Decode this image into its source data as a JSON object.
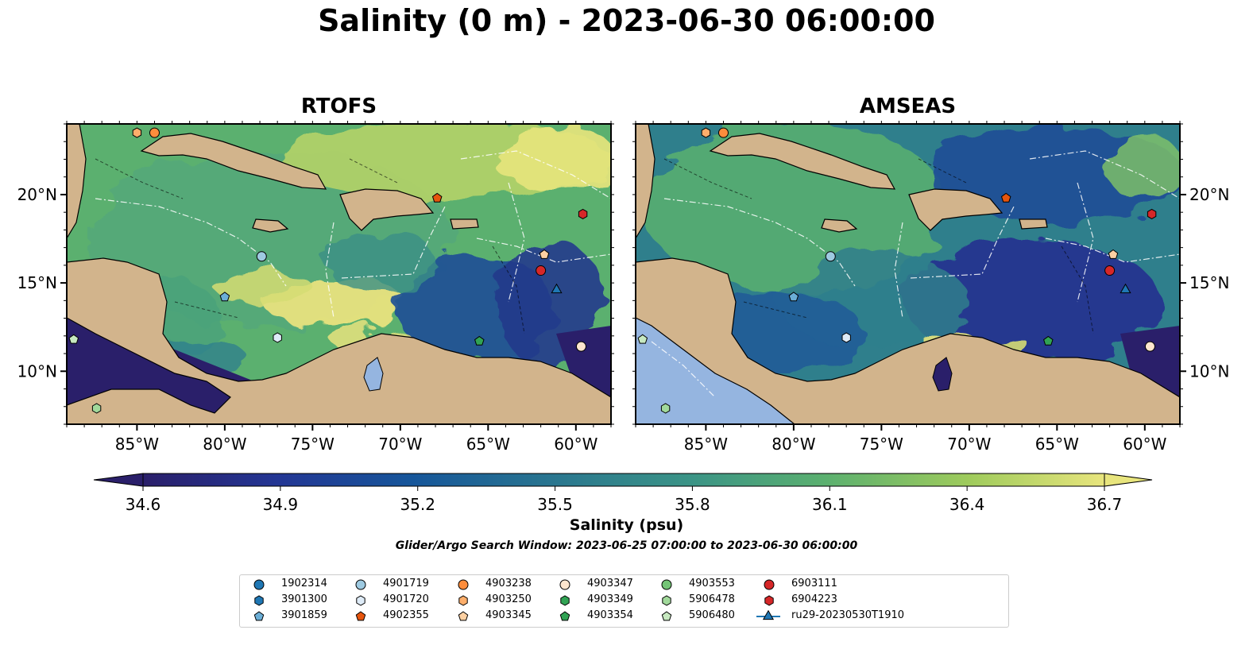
{
  "title": "Salinity (0 m) - 2023-06-30 06:00:00",
  "panels": [
    {
      "title": "RTOFS",
      "model": "rtofs"
    },
    {
      "title": "AMSEAS",
      "model": "amseas"
    }
  ],
  "axes": {
    "lon_range": [
      -89,
      -58
    ],
    "lat_range": [
      7,
      24
    ],
    "lon_ticks": [
      {
        "v": -85,
        "label": "85°W"
      },
      {
        "v": -80,
        "label": "80°W"
      },
      {
        "v": -75,
        "label": "75°W"
      },
      {
        "v": -70,
        "label": "70°W"
      },
      {
        "v": -65,
        "label": "65°W"
      },
      {
        "v": -60,
        "label": "60°W"
      }
    ],
    "lat_ticks": [
      {
        "v": 20,
        "label": "20°N"
      },
      {
        "v": 15,
        "label": "15°N"
      },
      {
        "v": 10,
        "label": "10°N"
      }
    ]
  },
  "colorbar": {
    "label": "Salinity (psu)",
    "range": [
      34.6,
      36.7
    ],
    "ticks": [
      "34.6",
      "34.9",
      "35.2",
      "35.5",
      "35.8",
      "36.1",
      "36.4",
      "36.7"
    ],
    "colormap": "haline",
    "extend": "both"
  },
  "search_window": "Glider/Argo Search Window: 2023-06-25 07:00:00 to 2023-06-30 06:00:00",
  "colors": {
    "land": "#d2b48c",
    "lakes": "#95b5e0",
    "border": "#000000"
  },
  "floats": [
    {
      "id": "1902314",
      "marker": "circle",
      "color": "#1f77b4",
      "lon": null,
      "lat": null
    },
    {
      "id": "3901300",
      "marker": "hexagon",
      "color": "#1f77b4",
      "lon": null,
      "lat": null
    },
    {
      "id": "3901859",
      "marker": "pentagon",
      "color": "#6baed6",
      "lon": -80,
      "lat": 14.2
    },
    {
      "id": "4901719",
      "marker": "circle",
      "color": "#9ecae1",
      "lon": -77.9,
      "lat": 16.5
    },
    {
      "id": "4901720",
      "marker": "hexagon",
      "color": "#deebf7",
      "lon": -77,
      "lat": 11.9
    },
    {
      "id": "4902355",
      "marker": "pentagon",
      "color": "#e6550d",
      "lon": -67.9,
      "lat": 19.8
    },
    {
      "id": "4903238",
      "marker": "circle",
      "color": "#fd8d3c",
      "lon": -84,
      "lat": 23.5
    },
    {
      "id": "4903250",
      "marker": "hexagon",
      "color": "#fdae6b",
      "lon": -85,
      "lat": 23.5
    },
    {
      "id": "4903345",
      "marker": "pentagon",
      "color": "#fdd0a2",
      "lon": -61.8,
      "lat": 16.6
    },
    {
      "id": "4903347",
      "marker": "circle",
      "color": "#fee6ce",
      "lon": -59.7,
      "lat": 11.4
    },
    {
      "id": "4903349",
      "marker": "hexagon",
      "color": "#31a354",
      "lon": null,
      "lat": null
    },
    {
      "id": "4903354",
      "marker": "pentagon",
      "color": "#31a354",
      "lon": -65.5,
      "lat": 11.7
    },
    {
      "id": "4903553",
      "marker": "circle",
      "color": "#74c476",
      "lon": null,
      "lat": null
    },
    {
      "id": "5906478",
      "marker": "hexagon",
      "color": "#a1d99b",
      "lon": -87.3,
      "lat": 7.9
    },
    {
      "id": "5906480",
      "marker": "pentagon",
      "color": "#c7e9c0",
      "lon": -88.6,
      "lat": 11.8
    },
    {
      "id": "6903111",
      "marker": "circle",
      "color": "#d62728",
      "lon": -62,
      "lat": 15.7
    },
    {
      "id": "6904223",
      "marker": "hexagon",
      "color": "#d62728",
      "lon": -59.6,
      "lat": 18.9
    },
    {
      "id": "ru29-20230530T1910",
      "marker": "triangle",
      "color": "#1f77b4",
      "lon": -61.1,
      "lat": 14.6,
      "track": true
    }
  ]
}
